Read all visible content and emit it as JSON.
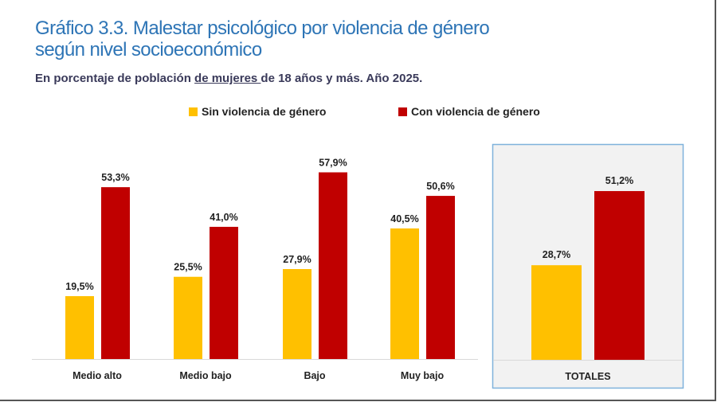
{
  "chart_data": {
    "type": "bar",
    "title": "Gráfico 3.3. Malestar psicológico por violencia de género según nivel socioeconómico",
    "title_lines": [
      "Gráfico 3.3. Malestar psicológico por violencia de género",
      "según nivel socioeconómico"
    ],
    "subtitle": {
      "before": "En porcentaje de población ",
      "underlined": "de mujeres ",
      "after": "de 18 años y más. Año 2025."
    },
    "categories": [
      "Medio alto",
      "Medio bajo",
      "Bajo",
      "Muy bajo"
    ],
    "series": [
      {
        "name": "Sin violencia de género",
        "color": "#ffc000",
        "values": [
          19.5,
          25.5,
          27.9,
          40.5
        ],
        "labels": [
          "19,5%",
          "25,5%",
          "27,9%",
          "40,5%"
        ]
      },
      {
        "name": "Con violencia de género",
        "color": "#c00000",
        "values": [
          53.3,
          41.0,
          57.9,
          50.6
        ],
        "labels": [
          "53,3%",
          "41,0%",
          "57,9%",
          "50,6%"
        ]
      }
    ],
    "totals": {
      "category": "TOTALES",
      "values": [
        28.7,
        51.2
      ],
      "labels": [
        "28,7%",
        "51,2%"
      ],
      "panel_background": "#f2f2f2",
      "panel_border": "#7fb2dc"
    },
    "legend_position": "top",
    "grid": false,
    "ylim": [
      0,
      60
    ]
  }
}
